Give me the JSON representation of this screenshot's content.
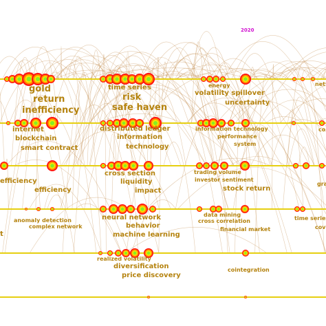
{
  "year_label": "2020",
  "clusters": [
    {
      "keywords": [
        "gold",
        "return",
        "inefficiency",
        "time series",
        "risk",
        "safe haven",
        "energy",
        "volatility spillover",
        "uncertainty",
        "netw"
      ]
    },
    {
      "keywords": [
        "internet",
        "blockchain",
        "smart contract",
        "distributed ledger",
        "information",
        "technology",
        "information technology",
        "performance",
        "system",
        "co"
      ]
    },
    {
      "keywords": [
        "efficiency",
        "efficiency",
        "cross section",
        "liquidity",
        "impact",
        "trading volume",
        "investor sentiment",
        "stock return",
        "gra"
      ]
    },
    {
      "keywords": [
        "t",
        "anomaly detection",
        "complex network",
        "neural network",
        "behavior",
        "machine learning",
        "data mining",
        "cross correlation",
        "financial market",
        "time series an",
        "cov"
      ]
    },
    {
      "keywords": [
        "realized volatility",
        "diversification",
        "price discovery",
        "cointegration"
      ]
    }
  ]
}
